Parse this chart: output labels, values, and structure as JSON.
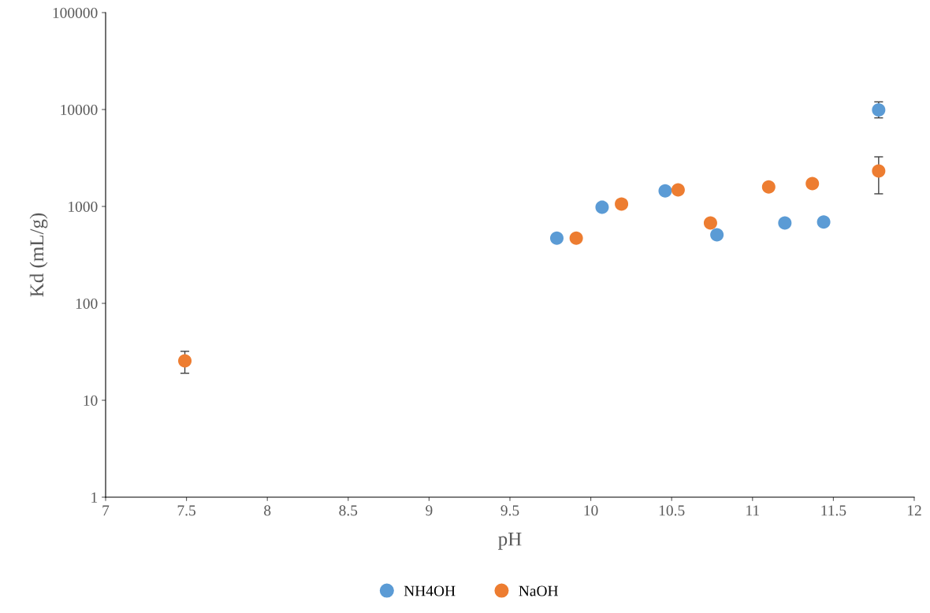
{
  "chart_data": {
    "type": "scatter",
    "xlabel": "pH",
    "ylabel": "Kd (mL/g)",
    "log": "y",
    "grid": false,
    "legend": "bottom",
    "marker": "circle",
    "xlim": [
      7,
      12
    ],
    "xticks": [
      7,
      7.5,
      8,
      8.5,
      9,
      9.5,
      10,
      10.5,
      11,
      11.5,
      12
    ],
    "ylim": [
      1,
      100000
    ],
    "yticks": [
      1,
      10,
      100,
      1000,
      10000,
      100000
    ],
    "series": [
      {
        "name": "NH4OH",
        "color": "#5b9bd5",
        "x": [
          9.79,
          10.07,
          10.46,
          10.78,
          11.2,
          11.44,
          11.78
        ],
        "values": [
          470,
          980,
          1450,
          510,
          675,
          690,
          9900
        ],
        "errors": [
          null,
          null,
          null,
          null,
          null,
          null,
          [
            8200,
            12000
          ]
        ]
      },
      {
        "name": "NaOH",
        "color": "#ed7d31",
        "x": [
          7.49,
          9.91,
          10.19,
          10.54,
          10.74,
          11.1,
          11.37,
          11.78
        ],
        "values": [
          25.5,
          470,
          1060,
          1480,
          675,
          1590,
          1720,
          2320
        ],
        "errors": [
          [
            19,
            32
          ],
          null,
          null,
          null,
          null,
          null,
          null,
          [
            1350,
            3250
          ]
        ]
      }
    ]
  }
}
